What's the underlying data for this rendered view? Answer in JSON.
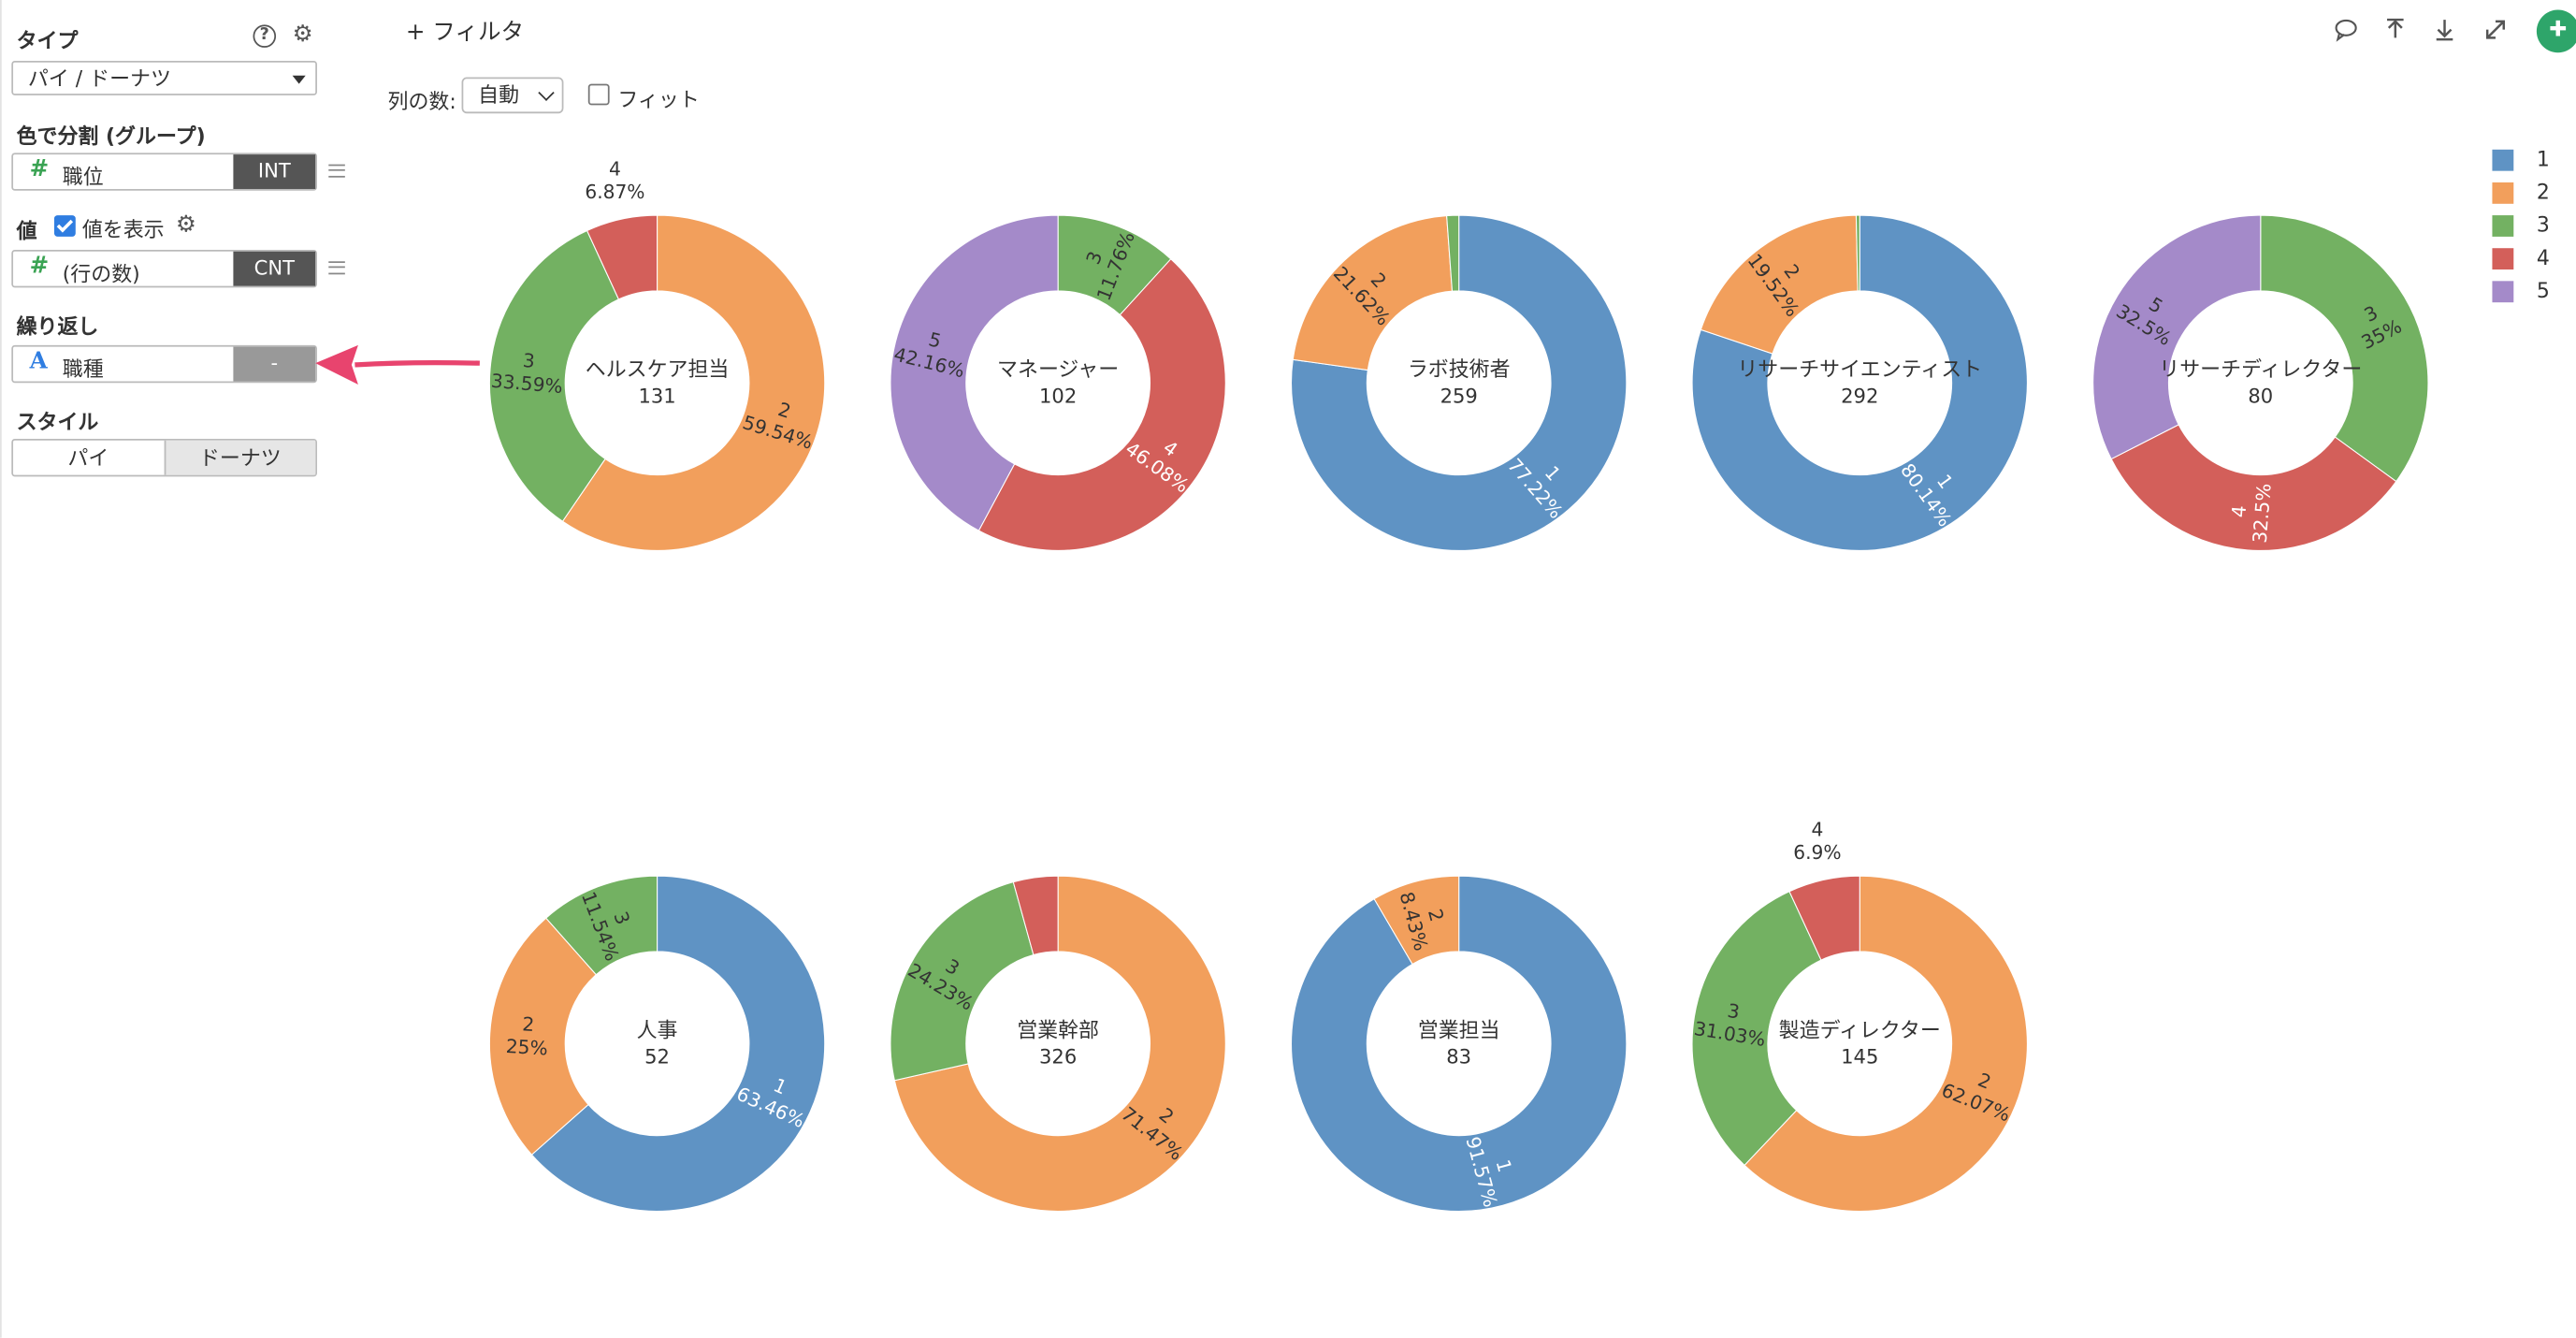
{
  "sidebar": {
    "type_label": "タイプ",
    "help_icon": "?",
    "type_value": "パイ / ドーナツ",
    "color_split_label": "色で分割 (グループ)",
    "color_field": {
      "name": "職位",
      "tag": "INT"
    },
    "value_label": "値",
    "show_values_label": "値を表示",
    "value_field": {
      "name": "(行の数)",
      "tag": "CNT"
    },
    "repeat_label": "繰り返し",
    "repeat_field": {
      "name": "職種",
      "tag": "-"
    },
    "style_label": "スタイル",
    "style_options": [
      "パイ",
      "ドーナツ"
    ],
    "style_selected": "ドーナツ"
  },
  "toolbar": {
    "filter_label": "フィルタ",
    "columns_label": "列の数:",
    "columns_value": "自動",
    "fit_label": "フィット",
    "icons": [
      "comment-icon",
      "upload-icon",
      "download-icon",
      "expand-icon",
      "pin-icon"
    ]
  },
  "colors": {
    "1": "#5f93c4",
    "2": "#f29f5c",
    "3": "#73b162",
    "4": "#d35f5a",
    "5": "#a48ac9",
    "accent": "#2ea56a",
    "arrow": "#e8446e"
  },
  "chart_data": {
    "type": "pie",
    "style": "donut",
    "legend": {
      "title": "",
      "entries": [
        "1",
        "2",
        "3",
        "4",
        "5"
      ],
      "placement": "top-right"
    },
    "charts": [
      {
        "title": "ヘルスケア担当",
        "total": "131",
        "slices": [
          {
            "label": "2",
            "value": 59.54,
            "pct": "59.54%"
          },
          {
            "label": "3",
            "value": 33.59,
            "pct": "33.59%"
          },
          {
            "label": "4",
            "value": 6.87,
            "pct": "6.87%"
          }
        ]
      },
      {
        "title": "マネージャー",
        "total": "102",
        "slices": [
          {
            "label": "3",
            "value": 11.76,
            "pct": "11.76%"
          },
          {
            "label": "4",
            "value": 46.08,
            "pct": "46.08%"
          },
          {
            "label": "5",
            "value": 42.16,
            "pct": "42.16%"
          }
        ]
      },
      {
        "title": "ラボ技術者",
        "total": "259",
        "slices": [
          {
            "label": "1",
            "value": 77.22,
            "pct": "77.22%"
          },
          {
            "label": "2",
            "value": 21.62,
            "pct": "21.62%"
          },
          {
            "label": "3",
            "value": 1.16,
            "pct": ""
          }
        ]
      },
      {
        "title": "リサーチサイエンティスト",
        "total": "292",
        "slices": [
          {
            "label": "1",
            "value": 80.14,
            "pct": "80.14%"
          },
          {
            "label": "2",
            "value": 19.52,
            "pct": "19.52%"
          },
          {
            "label": "3",
            "value": 0.34,
            "pct": ""
          }
        ]
      },
      {
        "title": "リサーチディレクター",
        "total": "80",
        "slices": [
          {
            "label": "3",
            "value": 35,
            "pct": "35%"
          },
          {
            "label": "4",
            "value": 32.5,
            "pct": "32.5%"
          },
          {
            "label": "5",
            "value": 32.5,
            "pct": "32.5%"
          }
        ]
      },
      {
        "title": "人事",
        "total": "52",
        "slices": [
          {
            "label": "1",
            "value": 63.46,
            "pct": "63.46%"
          },
          {
            "label": "2",
            "value": 25,
            "pct": "25%"
          },
          {
            "label": "3",
            "value": 11.54,
            "pct": "11.54%"
          }
        ]
      },
      {
        "title": "営業幹部",
        "total": "326",
        "slices": [
          {
            "label": "2",
            "value": 71.47,
            "pct": "71.47%"
          },
          {
            "label": "3",
            "value": 24.23,
            "pct": "24.23%"
          },
          {
            "label": "4",
            "value": 4.3,
            "pct": ""
          }
        ]
      },
      {
        "title": "営業担当",
        "total": "83",
        "slices": [
          {
            "label": "1",
            "value": 91.57,
            "pct": "91.57%"
          },
          {
            "label": "2",
            "value": 8.43,
            "pct": "8.43%"
          }
        ]
      },
      {
        "title": "製造ディレクター",
        "total": "145",
        "slices": [
          {
            "label": "2",
            "value": 62.07,
            "pct": "62.07%"
          },
          {
            "label": "3",
            "value": 31.03,
            "pct": "31.03%"
          },
          {
            "label": "4",
            "value": 6.9,
            "pct": "6.9%"
          }
        ]
      }
    ]
  }
}
